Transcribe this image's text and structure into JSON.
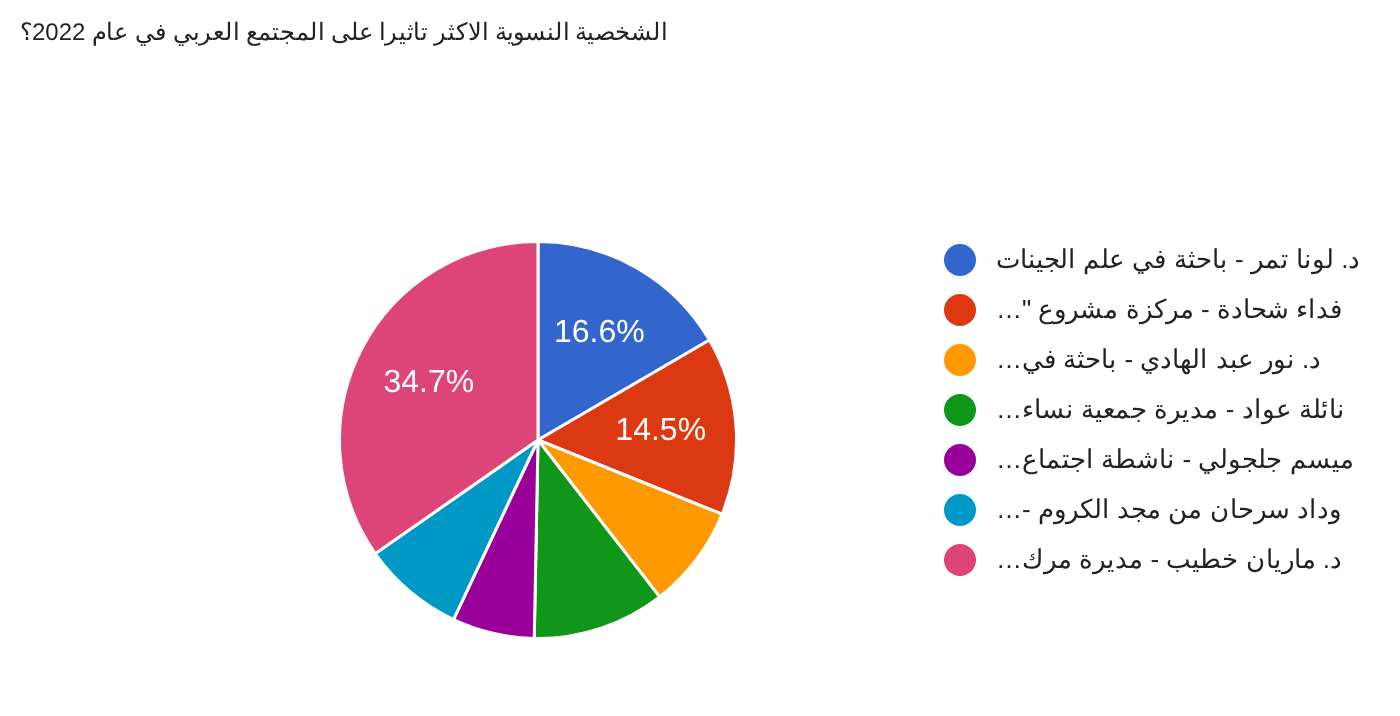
{
  "chart_data": {
    "type": "pie",
    "title": "الشخصية النسوية الاكثر تاثيرا على المجتمع العربي في عام 2022؟",
    "categories": [
      "د. لونا تمر - باحثة في علم الجينات",
      "فداء شحادة - مركزة مشروع \"…",
      "د. نور عبد الهادي - باحثة في…",
      "نائلة عواد - مديرة جمعية نساء…",
      "ميسم جلجولي - ناشطة اجتماع…",
      "وداد سرحان من مجد الكروم -…",
      "د. ماريان خطيب - مديرة مرك…"
    ],
    "values": [
      16.6,
      14.5,
      8.4,
      10.8,
      6.7,
      8.3,
      34.7
    ],
    "colors": [
      "#3366cc",
      "#dc3912",
      "#ff9900",
      "#109618",
      "#990099",
      "#0099c6",
      "#dd4477"
    ],
    "value_labels": [
      "16.6%",
      "14.5%",
      null,
      null,
      null,
      null,
      "34.7%"
    ],
    "legend": "right"
  }
}
